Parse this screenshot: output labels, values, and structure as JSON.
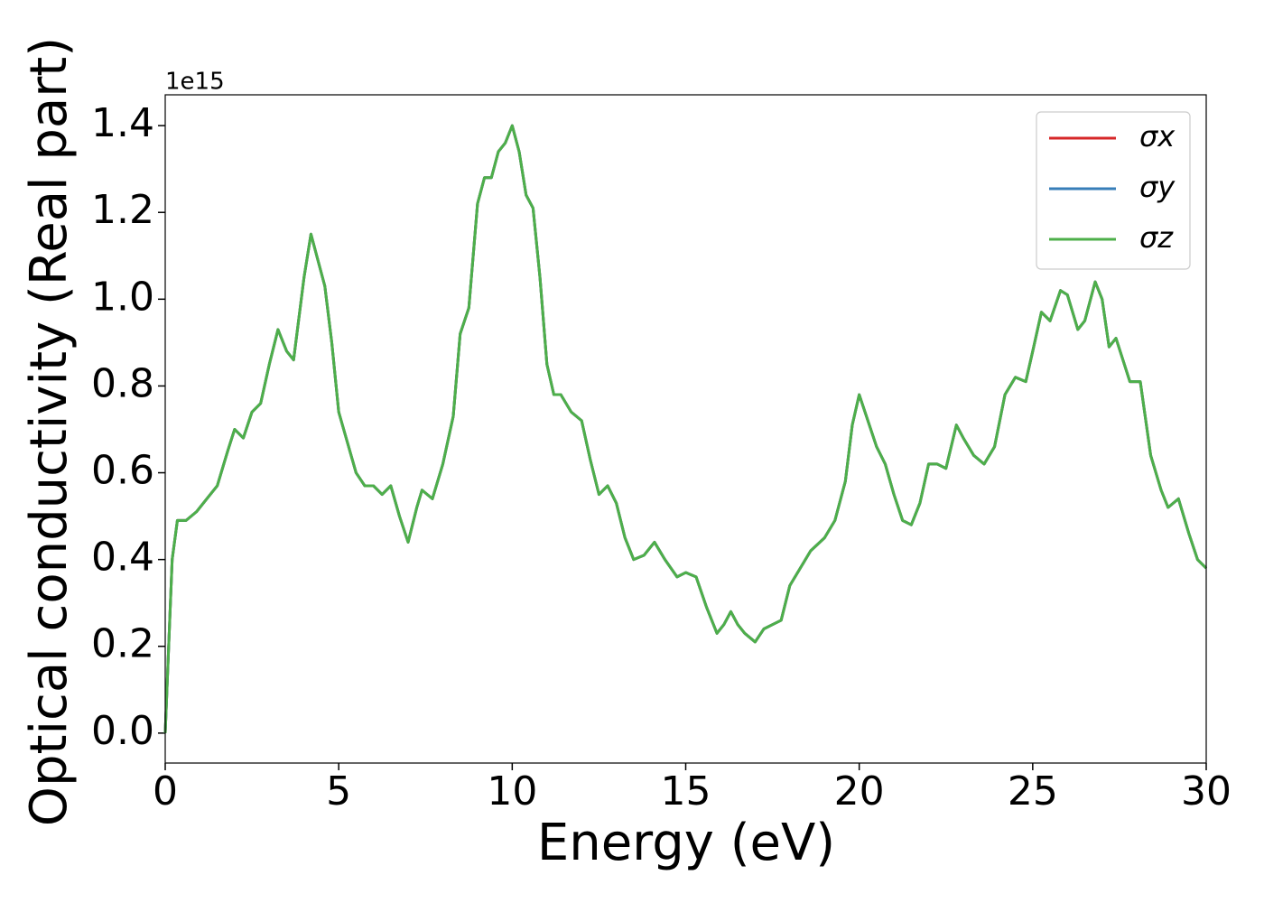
{
  "chart_data": {
    "type": "line",
    "xlabel": "Energy (eV)",
    "ylabel": "Optical conductivity (Real part)",
    "offset_text": "1e15",
    "xlim": [
      0,
      30
    ],
    "ylim": [
      -0.069,
      1.471
    ],
    "xticks": [
      0,
      5,
      10,
      15,
      20,
      25,
      30
    ],
    "yticks": [
      {
        "value": 0,
        "label": "0.0"
      },
      0.2,
      0.4,
      0.6,
      0.8,
      {
        "value": 1,
        "label": "1.0"
      },
      1.2,
      1.4
    ],
    "legend": "upper right",
    "x": [
      0,
      0.1,
      0.2,
      0.35,
      0.6,
      0.9,
      1.2,
      1.5,
      1.8,
      2.0,
      2.25,
      2.5,
      2.75,
      3.0,
      3.25,
      3.5,
      3.7,
      4.0,
      4.2,
      4.4,
      4.6,
      4.8,
      5.0,
      5.25,
      5.5,
      5.75,
      6.0,
      6.25,
      6.5,
      6.75,
      7.0,
      7.25,
      7.4,
      7.7,
      8.0,
      8.3,
      8.5,
      8.75,
      9.0,
      9.2,
      9.4,
      9.6,
      9.8,
      10.0,
      10.2,
      10.4,
      10.6,
      10.8,
      11.0,
      11.2,
      11.4,
      11.7,
      12.0,
      12.25,
      12.5,
      12.75,
      13.0,
      13.25,
      13.5,
      13.8,
      14.1,
      14.4,
      14.75,
      15.0,
      15.3,
      15.6,
      15.9,
      16.1,
      16.3,
      16.5,
      16.7,
      17.0,
      17.25,
      17.5,
      17.75,
      18.0,
      18.3,
      18.6,
      19.0,
      19.3,
      19.6,
      19.8,
      20.0,
      20.25,
      20.5,
      20.75,
      21.0,
      21.25,
      21.5,
      21.75,
      22.0,
      22.25,
      22.5,
      22.8,
      23.0,
      23.3,
      23.6,
      23.9,
      24.2,
      24.5,
      24.8,
      25.0,
      25.25,
      25.5,
      25.8,
      26.0,
      26.3,
      26.5,
      26.8,
      27.0,
      27.2,
      27.4,
      27.6,
      27.8,
      28.1,
      28.4,
      28.7,
      28.9,
      29.2,
      29.5,
      29.75,
      30.0
    ],
    "series": [
      {
        "name": "σx",
        "color": "#d62728",
        "values": [
          0,
          0.2,
          0.4,
          0.49,
          0.49,
          0.51,
          0.54,
          0.57,
          0.65,
          0.7,
          0.68,
          0.74,
          0.76,
          0.85,
          0.93,
          0.88,
          0.86,
          1.05,
          1.15,
          1.09,
          1.03,
          0.9,
          0.74,
          0.67,
          0.6,
          0.57,
          0.57,
          0.55,
          0.57,
          0.5,
          0.44,
          0.52,
          0.56,
          0.54,
          0.62,
          0.73,
          0.92,
          0.98,
          1.22,
          1.28,
          1.28,
          1.34,
          1.36,
          1.4,
          1.34,
          1.24,
          1.21,
          1.05,
          0.85,
          0.78,
          0.78,
          0.74,
          0.72,
          0.63,
          0.55,
          0.57,
          0.53,
          0.45,
          0.4,
          0.41,
          0.44,
          0.4,
          0.36,
          0.37,
          0.36,
          0.29,
          0.23,
          0.25,
          0.28,
          0.25,
          0.23,
          0.21,
          0.24,
          0.25,
          0.26,
          0.34,
          0.38,
          0.42,
          0.45,
          0.49,
          0.58,
          0.71,
          0.78,
          0.72,
          0.66,
          0.62,
          0.55,
          0.49,
          0.48,
          0.53,
          0.62,
          0.62,
          0.61,
          0.71,
          0.68,
          0.64,
          0.62,
          0.66,
          0.78,
          0.82,
          0.81,
          0.88,
          0.97,
          0.95,
          1.02,
          1.01,
          0.93,
          0.95,
          1.04,
          1.0,
          0.89,
          0.91,
          0.86,
          0.81,
          0.81,
          0.64,
          0.56,
          0.52,
          0.54,
          0.46,
          0.4,
          0.38
        ]
      },
      {
        "name": "σy",
        "color": "#377eb8",
        "values": [
          0,
          0.2,
          0.4,
          0.49,
          0.49,
          0.51,
          0.54,
          0.57,
          0.65,
          0.7,
          0.68,
          0.74,
          0.76,
          0.85,
          0.93,
          0.88,
          0.86,
          1.05,
          1.15,
          1.09,
          1.03,
          0.9,
          0.74,
          0.67,
          0.6,
          0.57,
          0.57,
          0.55,
          0.57,
          0.5,
          0.44,
          0.52,
          0.56,
          0.54,
          0.62,
          0.73,
          0.92,
          0.98,
          1.22,
          1.28,
          1.28,
          1.34,
          1.36,
          1.4,
          1.34,
          1.24,
          1.21,
          1.05,
          0.85,
          0.78,
          0.78,
          0.74,
          0.72,
          0.63,
          0.55,
          0.57,
          0.53,
          0.45,
          0.4,
          0.41,
          0.44,
          0.4,
          0.36,
          0.37,
          0.36,
          0.29,
          0.23,
          0.25,
          0.28,
          0.25,
          0.23,
          0.21,
          0.24,
          0.25,
          0.26,
          0.34,
          0.38,
          0.42,
          0.45,
          0.49,
          0.58,
          0.71,
          0.78,
          0.72,
          0.66,
          0.62,
          0.55,
          0.49,
          0.48,
          0.53,
          0.62,
          0.62,
          0.61,
          0.71,
          0.68,
          0.64,
          0.62,
          0.66,
          0.78,
          0.82,
          0.81,
          0.88,
          0.97,
          0.95,
          1.02,
          1.01,
          0.93,
          0.95,
          1.04,
          1.0,
          0.89,
          0.91,
          0.86,
          0.81,
          0.81,
          0.64,
          0.56,
          0.52,
          0.54,
          0.46,
          0.4,
          0.38
        ]
      },
      {
        "name": "σz",
        "color": "#4daf4a",
        "values": [
          0,
          0.2,
          0.4,
          0.49,
          0.49,
          0.51,
          0.54,
          0.57,
          0.65,
          0.7,
          0.68,
          0.74,
          0.76,
          0.85,
          0.93,
          0.88,
          0.86,
          1.05,
          1.15,
          1.09,
          1.03,
          0.9,
          0.74,
          0.67,
          0.6,
          0.57,
          0.57,
          0.55,
          0.57,
          0.5,
          0.44,
          0.52,
          0.56,
          0.54,
          0.62,
          0.73,
          0.92,
          0.98,
          1.22,
          1.28,
          1.28,
          1.34,
          1.36,
          1.4,
          1.34,
          1.24,
          1.21,
          1.05,
          0.85,
          0.78,
          0.78,
          0.74,
          0.72,
          0.63,
          0.55,
          0.57,
          0.53,
          0.45,
          0.4,
          0.41,
          0.44,
          0.4,
          0.36,
          0.37,
          0.36,
          0.29,
          0.23,
          0.25,
          0.28,
          0.25,
          0.23,
          0.21,
          0.24,
          0.25,
          0.26,
          0.34,
          0.38,
          0.42,
          0.45,
          0.49,
          0.58,
          0.71,
          0.78,
          0.72,
          0.66,
          0.62,
          0.55,
          0.49,
          0.48,
          0.53,
          0.62,
          0.62,
          0.61,
          0.71,
          0.68,
          0.64,
          0.62,
          0.66,
          0.78,
          0.82,
          0.81,
          0.88,
          0.97,
          0.95,
          1.02,
          1.01,
          0.93,
          0.95,
          1.04,
          1.0,
          0.89,
          0.91,
          0.86,
          0.81,
          0.81,
          0.64,
          0.56,
          0.52,
          0.54,
          0.46,
          0.4,
          0.38
        ]
      }
    ]
  }
}
